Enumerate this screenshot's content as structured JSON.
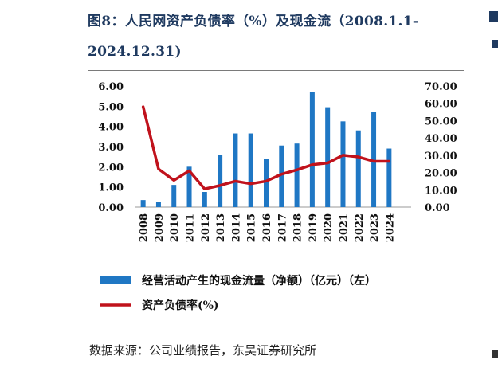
{
  "title": {
    "line1": "图8：人民网资产负债率（%）及现金流（2008.1.1-",
    "line2": "2024.12.31)"
  },
  "source": "数据来源：公司业绩报告，东吴证券研究所",
  "chart_data": {
    "type": "bar+line",
    "categories": [
      "2008",
      "2009",
      "2010",
      "2011",
      "2012",
      "2013",
      "2014",
      "2015",
      "2016",
      "2017",
      "2018",
      "2019",
      "2020",
      "2021",
      "2022",
      "2023",
      "2024"
    ],
    "series": [
      {
        "name": "经营活动产生的现金流量（净额）（亿元）（左）",
        "kind": "bar",
        "axis": "left",
        "color": "#1f77c4",
        "values": [
          0.35,
          0.25,
          1.1,
          2.0,
          0.75,
          2.6,
          3.65,
          3.65,
          2.4,
          3.05,
          3.15,
          5.7,
          4.95,
          4.25,
          3.8,
          4.7,
          2.9
        ]
      },
      {
        "name": "资产负债率(%)",
        "kind": "line",
        "axis": "right",
        "color": "#c0121c",
        "values": [
          58,
          22,
          15.5,
          21,
          10.5,
          12.5,
          15,
          13.5,
          15,
          19,
          21.5,
          24.5,
          25.5,
          30,
          29,
          26.5,
          26.5
        ]
      }
    ],
    "left_axis": {
      "ticks": [
        "0.00",
        "1.00",
        "2.00",
        "3.00",
        "4.00",
        "5.00",
        "6.00"
      ],
      "ylim": [
        0,
        6
      ]
    },
    "right_axis": {
      "ticks": [
        "0.00",
        "10.00",
        "20.00",
        "30.00",
        "40.00",
        "50.00",
        "60.00",
        "70.00"
      ],
      "ylim": [
        0,
        70
      ]
    },
    "legend_position": "bottom"
  }
}
